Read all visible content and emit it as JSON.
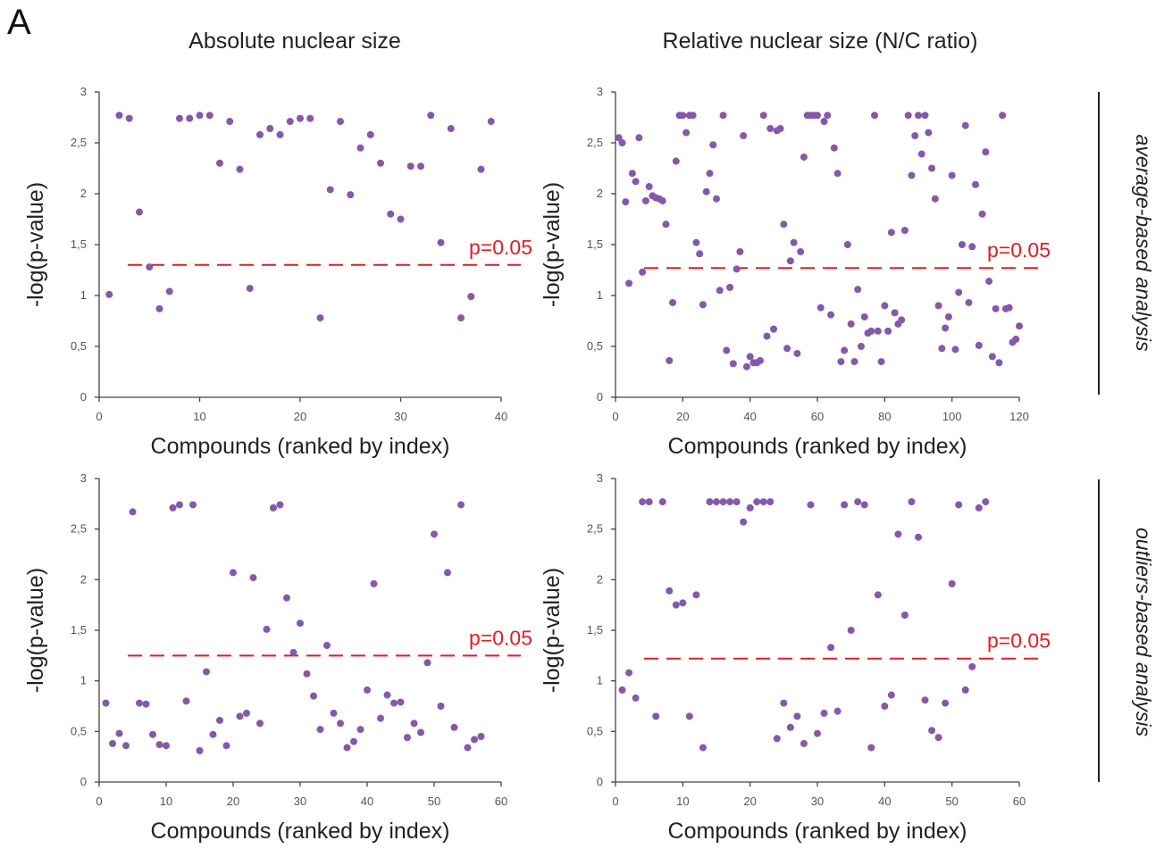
{
  "panel_label": "A",
  "column_titles": [
    "Absolute nuclear size",
    "Relative nuclear size (N/C ratio)"
  ],
  "row_labels": [
    "average-based analysis",
    "outliers-based analysis"
  ],
  "colors": {
    "points": "#8458ab",
    "threshold": "#e31b23",
    "axes": "#444444"
  },
  "chart_data": [
    {
      "type": "scatter",
      "xlabel": "Compounds (ranked by index)",
      "ylabel": "-log(p-value)",
      "xlim": [
        0,
        40
      ],
      "xticks": [
        0,
        10,
        20,
        30,
        40
      ],
      "ylim": [
        0,
        3
      ],
      "yticks": [
        0,
        0.5,
        1,
        1.5,
        2,
        2.5,
        3
      ],
      "ytick_labels": [
        "0",
        "0,5",
        "1",
        "1,5",
        "2",
        "2,5",
        "3"
      ],
      "grid": false,
      "threshold": {
        "y": 1.3,
        "label": "p=0.05"
      },
      "x": [
        1,
        2,
        3,
        4,
        5,
        6,
        7,
        8,
        9,
        10,
        11,
        12,
        13,
        14,
        15,
        16,
        17,
        18,
        19,
        20,
        21,
        22,
        23,
        24,
        25,
        26,
        27,
        28,
        29,
        30,
        31,
        32,
        33,
        34,
        35,
        36,
        37,
        38,
        39
      ],
      "y": [
        1.01,
        2.77,
        2.74,
        1.82,
        1.28,
        0.87,
        1.04,
        2.74,
        2.74,
        2.77,
        2.77,
        2.3,
        2.71,
        2.24,
        1.07,
        2.58,
        2.64,
        2.58,
        2.71,
        2.74,
        2.74,
        0.78,
        2.04,
        2.71,
        1.99,
        2.45,
        2.58,
        2.3,
        1.8,
        1.75,
        2.27,
        2.27,
        2.77,
        1.52,
        2.64,
        0.78,
        0.99,
        2.24,
        2.71
      ]
    },
    {
      "type": "scatter",
      "xlabel": "Compounds (ranked by index)",
      "ylabel": "-log(p-value)",
      "xlim": [
        0,
        120
      ],
      "xticks": [
        0,
        20,
        40,
        60,
        80,
        100,
        120
      ],
      "ylim": [
        0,
        3
      ],
      "yticks": [
        0,
        0.5,
        1,
        1.5,
        2,
        2.5,
        3
      ],
      "ytick_labels": [
        "0",
        "0,5",
        "1",
        "1,5",
        "2",
        "2,5",
        "3"
      ],
      "grid": false,
      "threshold": {
        "y": 1.27,
        "label": "p=0.05"
      },
      "x": [
        1,
        2,
        3,
        4,
        5,
        6,
        7,
        8,
        9,
        10,
        11,
        12,
        13,
        14,
        15,
        16,
        17,
        18,
        19,
        20,
        21,
        22,
        23,
        24,
        25,
        26,
        27,
        28,
        29,
        30,
        31,
        32,
        33,
        34,
        35,
        36,
        37,
        38,
        39,
        40,
        41,
        42,
        43,
        44,
        45,
        46,
        47,
        48,
        49,
        50,
        51,
        52,
        53,
        54,
        55,
        56,
        57,
        58,
        59,
        60,
        61,
        62,
        63,
        64,
        65,
        66,
        67,
        68,
        69,
        70,
        71,
        72,
        73,
        74,
        75,
        76,
        77,
        78,
        79,
        80,
        81,
        82,
        83,
        84,
        85,
        86,
        87,
        88,
        89,
        90,
        91,
        92,
        93,
        94,
        95,
        96,
        97,
        98,
        99,
        100,
        101,
        102,
        103,
        104,
        105,
        106,
        107,
        108,
        109,
        110,
        111,
        112,
        113,
        114,
        115,
        116,
        117,
        118,
        119,
        120
      ],
      "y": [
        2.55,
        2.5,
        1.92,
        1.12,
        2.2,
        2.12,
        2.55,
        1.23,
        1.93,
        2.07,
        1.98,
        1.96,
        1.95,
        1.93,
        1.7,
        0.36,
        0.93,
        2.32,
        2.77,
        2.77,
        2.6,
        2.77,
        2.77,
        1.52,
        1.41,
        0.91,
        2.02,
        2.2,
        2.48,
        1.95,
        1.05,
        2.77,
        0.46,
        1.08,
        0.33,
        1.26,
        1.43,
        2.57,
        0.3,
        0.4,
        0.34,
        0.34,
        0.36,
        2.77,
        0.6,
        2.64,
        0.67,
        2.62,
        2.64,
        1.7,
        0.48,
        1.34,
        1.52,
        0.43,
        1.43,
        2.36,
        2.77,
        2.77,
        2.77,
        2.77,
        0.88,
        2.71,
        2.77,
        0.81,
        2.45,
        2.2,
        0.35,
        0.46,
        1.5,
        0.72,
        0.35,
        1.06,
        0.5,
        0.79,
        0.63,
        0.65,
        2.77,
        0.65,
        0.35,
        0.9,
        0.65,
        1.62,
        0.83,
        0.72,
        0.76,
        1.64,
        2.77,
        2.18,
        2.57,
        2.77,
        2.39,
        2.77,
        2.6,
        2.25,
        1.95,
        0.9,
        0.48,
        0.68,
        0.79,
        2.18,
        0.47,
        1.03,
        1.5,
        2.67,
        0.93,
        1.48,
        2.09,
        0.51,
        1.8,
        2.41,
        1.14,
        0.4,
        0.87,
        0.34,
        2.77,
        0.87,
        0.88,
        0.54,
        0.57,
        0.7
      ]
    },
    {
      "type": "scatter",
      "xlabel": "Compounds (ranked by index)",
      "ylabel": "-log(p-value)",
      "xlim": [
        0,
        60
      ],
      "xticks": [
        0,
        10,
        20,
        30,
        40,
        50,
        60
      ],
      "ylim": [
        0,
        3
      ],
      "yticks": [
        0,
        0.5,
        1,
        1.5,
        2,
        2.5,
        3
      ],
      "ytick_labels": [
        "0",
        "0,5",
        "1",
        "1,5",
        "2",
        "2,5",
        "3"
      ],
      "grid": false,
      "threshold": {
        "y": 1.25,
        "label": "p=0.05"
      },
      "x": [
        1,
        2,
        3,
        4,
        5,
        6,
        7,
        8,
        9,
        10,
        11,
        12,
        13,
        14,
        15,
        16,
        17,
        18,
        19,
        20,
        21,
        22,
        23,
        24,
        25,
        26,
        27,
        28,
        29,
        30,
        31,
        32,
        33,
        34,
        35,
        36,
        37,
        38,
        39,
        40,
        41,
        42,
        43,
        44,
        45,
        46,
        47,
        48,
        49,
        50,
        51,
        52,
        53,
        54,
        55,
        56,
        57
      ],
      "y": [
        0.78,
        0.38,
        0.48,
        0.36,
        2.67,
        0.78,
        0.77,
        0.47,
        0.37,
        0.36,
        2.71,
        2.74,
        0.8,
        2.74,
        0.31,
        1.09,
        0.47,
        0.61,
        0.36,
        2.07,
        0.65,
        0.68,
        2.02,
        0.58,
        1.51,
        2.71,
        2.74,
        1.82,
        1.28,
        1.57,
        1.07,
        0.85,
        0.52,
        1.35,
        0.68,
        0.58,
        0.34,
        0.4,
        0.52,
        0.91,
        1.96,
        0.63,
        0.86,
        0.78,
        0.79,
        0.44,
        0.58,
        0.49,
        1.18,
        2.45,
        0.75,
        2.07,
        0.54,
        2.74,
        0.34,
        0.42,
        0.45
      ]
    },
    {
      "type": "scatter",
      "xlabel": "Compounds (ranked by index)",
      "ylabel": "-log(p-value)",
      "xlim": [
        0,
        60
      ],
      "xticks": [
        0,
        10,
        20,
        30,
        40,
        50,
        60
      ],
      "ylim": [
        0,
        3
      ],
      "yticks": [
        0,
        0.5,
        1,
        1.5,
        2,
        2.5,
        3
      ],
      "ytick_labels": [
        "0",
        "0,5",
        "1",
        "1,5",
        "2",
        "2,5",
        "3"
      ],
      "grid": false,
      "threshold": {
        "y": 1.22,
        "label": "p=0.05"
      },
      "x": [
        1,
        2,
        3,
        4,
        5,
        6,
        7,
        8,
        9,
        10,
        11,
        12,
        13,
        14,
        15,
        16,
        17,
        18,
        19,
        20,
        21,
        22,
        23,
        24,
        25,
        26,
        27,
        28,
        29,
        30,
        31,
        32,
        33,
        34,
        35,
        36,
        37,
        38,
        39,
        40,
        41,
        42,
        43,
        44,
        45,
        46,
        47,
        48,
        49,
        50,
        51,
        52,
        53,
        54,
        55
      ],
      "y": [
        0.91,
        1.08,
        0.83,
        2.77,
        2.77,
        0.65,
        2.77,
        1.89,
        1.75,
        1.77,
        0.65,
        1.85,
        0.34,
        2.77,
        2.77,
        2.77,
        2.77,
        2.77,
        2.57,
        2.71,
        2.77,
        2.77,
        2.77,
        0.43,
        0.78,
        0.54,
        0.65,
        0.38,
        2.74,
        0.48,
        0.68,
        1.33,
        0.7,
        2.74,
        1.5,
        2.77,
        2.74,
        0.34,
        1.85,
        0.75,
        0.86,
        2.45,
        1.65,
        2.77,
        2.42,
        0.81,
        0.51,
        0.44,
        0.78,
        1.96,
        2.74,
        0.91,
        1.14,
        2.71,
        2.77
      ]
    }
  ]
}
